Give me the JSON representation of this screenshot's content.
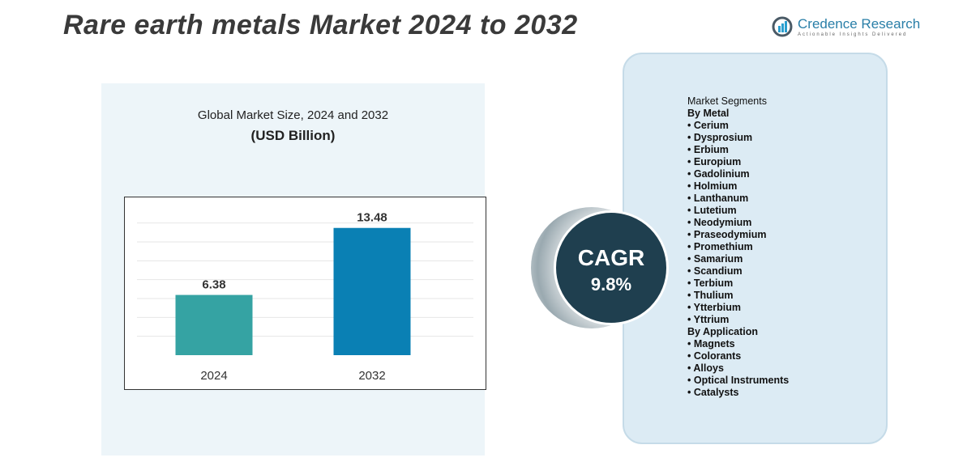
{
  "title": "Rare earth metals Market 2024 to 2032",
  "logo": {
    "name": "Credence Research",
    "tagline": "Actionable Insights Delivered"
  },
  "chart_data": {
    "type": "bar",
    "title": "Global Market Size, 2024 and 2032",
    "subtitle": "(USD Billion)",
    "categories": [
      "2024",
      "2032"
    ],
    "values": [
      6.38,
      13.48
    ],
    "data_labels": [
      "6.38",
      "13.48"
    ],
    "colors": [
      "#35a3a3",
      "#0a80b4"
    ],
    "ylim": [
      0,
      15
    ],
    "grid": true
  },
  "cagr": {
    "label": "CAGR",
    "value": "9.8%"
  },
  "segments": {
    "heading": "Market Segments",
    "groups": [
      {
        "title": "By Metal",
        "items": [
          "Cerium",
          "Dysprosium",
          "Erbium",
          "Europium",
          "Gadolinium",
          "Holmium",
          "Lanthanum",
          "Lutetium",
          "Neodymium",
          "Praseodymium",
          "Promethium",
          "Samarium",
          "Scandium",
          "Terbium",
          "Thulium",
          "Ytterbium",
          "Yttrium"
        ]
      },
      {
        "title": "By Application",
        "items": [
          "Magnets",
          "Colorants",
          "Alloys",
          "Optical Instruments",
          "Catalysts"
        ]
      }
    ]
  }
}
